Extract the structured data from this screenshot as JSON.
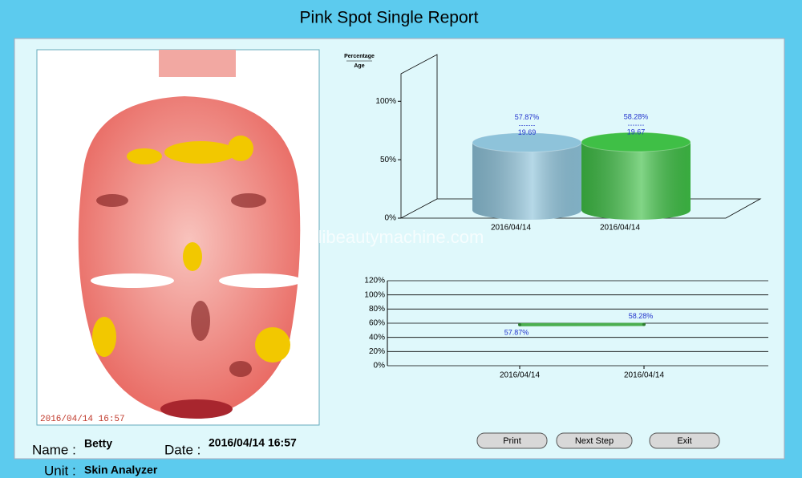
{
  "title": "Pink Spot Single Report",
  "watermark": "libeautymachine.com",
  "photo": {
    "timestamp": "2016/04/14 16:57"
  },
  "info": {
    "name_label": "Name :",
    "name": "Betty",
    "date_label": "Date :",
    "date": "2016/04/14 16:57",
    "unit_label": "Unit :",
    "unit": "Skin Analyzer"
  },
  "buttons": [
    "Print",
    "Next Step",
    "Exit"
  ],
  "chart_data": [
    {
      "type": "bar",
      "y_label": {
        "top": "Percentage",
        "bottom": "Age"
      },
      "categories": [
        "2016/04/14",
        "2016/04/14"
      ],
      "values": [
        57.87,
        58.28
      ],
      "value_labels": [
        "57.87%",
        "58.28%"
      ],
      "ages": [
        19.69,
        19.67
      ],
      "colors": [
        "#8ec3da",
        "#3fbf46"
      ],
      "ylim": [
        0,
        140
      ],
      "yticks": [
        {
          "value": 0,
          "label": "0%"
        },
        {
          "value": 50,
          "label": "50%"
        },
        {
          "value": 100,
          "label": "100%"
        }
      ]
    },
    {
      "type": "line",
      "categories": [
        "2016/04/14",
        "2016/04/14"
      ],
      "series": [
        {
          "color": "#4caf50",
          "values": [
            57.87,
            58.28
          ],
          "value_labels": [
            "57.87%",
            "58.28%"
          ]
        }
      ],
      "ylim": [
        0,
        120
      ],
      "yticks": [
        {
          "value": 0,
          "label": "0%"
        },
        {
          "value": 20,
          "label": "20%"
        },
        {
          "value": 40,
          "label": "40%"
        },
        {
          "value": 60,
          "label": "60%"
        },
        {
          "value": 80,
          "label": "80%"
        },
        {
          "value": 100,
          "label": "100%"
        },
        {
          "value": 120,
          "label": "120%"
        }
      ],
      "grid": true
    }
  ]
}
